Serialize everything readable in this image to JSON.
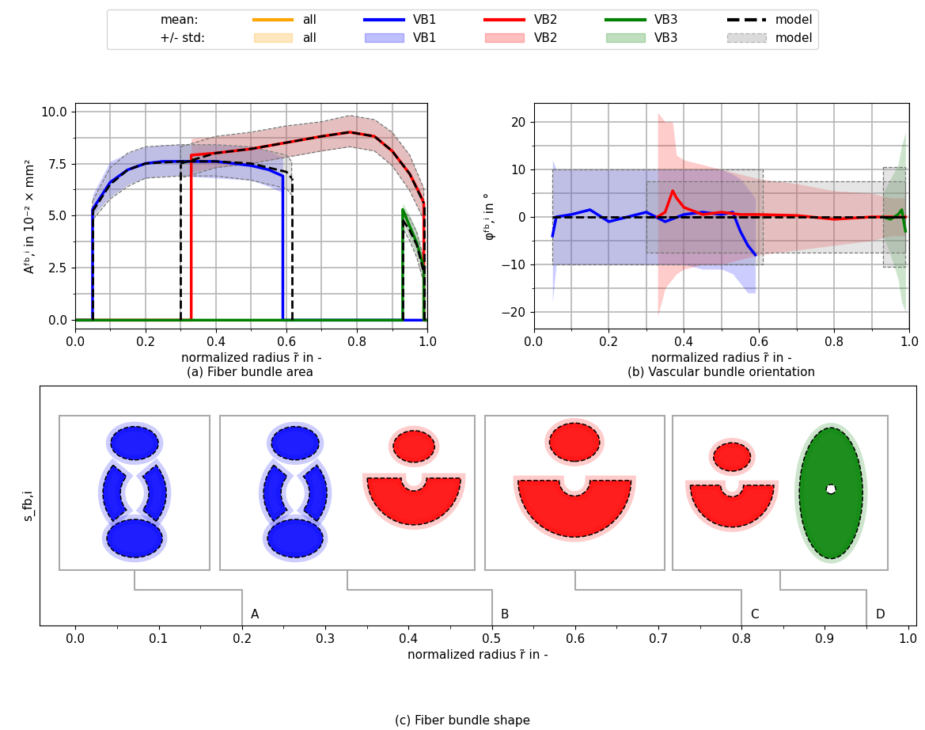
{
  "legend": {
    "loc": "upper center",
    "row_labels": [
      "mean:",
      "+/- std:"
    ],
    "entries": [
      {
        "name": "all",
        "color": "#ffa500"
      },
      {
        "name": "VB1",
        "color": "#0000ff"
      },
      {
        "name": "VB2",
        "color": "#ff0000"
      },
      {
        "name": "VB3",
        "color": "#008000"
      },
      {
        "name": "model",
        "color": "#000000",
        "line_style": "dashed"
      }
    ]
  },
  "chart_data": [
    {
      "type": "line",
      "title": "(a) Fiber bundle area",
      "xlabel": "normalized radius r̃ in -",
      "ylabel": "Aᶠᵇ,ⁱ in 10⁻² × mm²",
      "xlim": [
        0.0,
        1.0
      ],
      "ylim": [
        -0.4,
        10.4
      ],
      "xticks": [
        0.0,
        0.2,
        0.4,
        0.6,
        0.8,
        1.0
      ],
      "x_minor_ticks": [
        0.1,
        0.3,
        0.5,
        0.7,
        0.9
      ],
      "yticks": [
        {
          "value": 0,
          "label": "0.0"
        },
        2.5,
        5.0,
        7.5,
        10.0
      ],
      "y_minor_ticks": [
        1.25,
        3.75,
        6.25,
        8.75
      ],
      "grid": true,
      "series": [
        {
          "name": "VB1",
          "color": "#0000ff",
          "x": [
            0.0,
            0.05,
            0.05,
            0.1,
            0.15,
            0.2,
            0.25,
            0.3,
            0.35,
            0.4,
            0.45,
            0.5,
            0.55,
            0.59,
            0.59,
            1.0
          ],
          "values": [
            0,
            0,
            5.3,
            6.6,
            7.2,
            7.5,
            7.6,
            7.6,
            7.6,
            7.6,
            7.5,
            7.4,
            7.2,
            6.9,
            0,
            0
          ],
          "std": {
            "x": [
              0.05,
              0.1,
              0.15,
              0.2,
              0.25,
              0.3,
              0.4,
              0.5,
              0.55,
              0.59
            ],
            "lower": [
              5.0,
              5.9,
              6.5,
              6.8,
              6.9,
              6.9,
              6.8,
              6.7,
              6.4,
              6.1
            ],
            "upper": [
              6.0,
              7.6,
              8.0,
              8.3,
              8.4,
              8.4,
              8.4,
              8.3,
              8.1,
              7.8
            ]
          }
        },
        {
          "name": "VB2",
          "color": "#ff0000",
          "x": [
            0.0,
            0.33,
            0.33,
            0.4,
            0.5,
            0.6,
            0.7,
            0.78,
            0.85,
            0.9,
            0.95,
            0.98,
            0.99,
            0.99,
            1.0
          ],
          "values": [
            0,
            0,
            7.9,
            8.0,
            8.2,
            8.5,
            8.8,
            9.0,
            8.8,
            8.1,
            7.0,
            6.0,
            5.6,
            0,
            0
          ],
          "std": {
            "x": [
              0.33,
              0.4,
              0.5,
              0.6,
              0.7,
              0.78,
              0.85,
              0.9,
              0.95,
              0.99
            ],
            "lower": [
              7.1,
              7.3,
              7.5,
              7.8,
              8.1,
              8.3,
              8.1,
              7.4,
              6.2,
              4.8
            ],
            "upper": [
              8.7,
              8.8,
              9.0,
              9.3,
              9.5,
              9.8,
              9.6,
              9.0,
              7.9,
              6.3
            ]
          }
        },
        {
          "name": "VB3",
          "color": "#008000",
          "x": [
            0.0,
            0.93,
            0.93,
            0.95,
            0.97,
            0.99,
            0.99,
            1.0
          ],
          "values": [
            0,
            0,
            5.3,
            4.5,
            3.7,
            2.5,
            0,
            0
          ],
          "std": {
            "x": [
              0.93,
              0.95,
              0.97,
              0.99
            ],
            "lower": [
              4.9,
              3.9,
              3.1,
              2.0
            ],
            "upper": [
              5.6,
              5.0,
              4.3,
              3.0
            ]
          }
        },
        {
          "name": "model",
          "color": "#000000",
          "line_style": "dashed",
          "segments": [
            {
              "x": [
                0.05,
                0.1,
                0.15,
                0.2,
                0.3,
                0.4,
                0.5,
                0.6,
                0.615
              ],
              "values": [
                5.2,
                6.5,
                7.2,
                7.5,
                7.6,
                7.6,
                7.5,
                7.1,
                6.8
              ],
              "lower": [
                4.8,
                5.8,
                6.4,
                6.8,
                6.9,
                6.9,
                6.7,
                6.3,
                6.0
              ],
              "upper": [
                5.7,
                7.3,
                8.0,
                8.3,
                8.4,
                8.4,
                8.3,
                7.9,
                7.6
              ]
            },
            {
              "x": [
                0.3,
                0.4,
                0.5,
                0.6,
                0.7,
                0.78,
                0.85,
                0.9,
                0.95,
                0.99
              ],
              "values": [
                7.5,
                8.0,
                8.2,
                8.5,
                8.8,
                9.0,
                8.8,
                8.1,
                7.0,
                5.6
              ],
              "lower": [
                6.8,
                7.3,
                7.5,
                7.8,
                8.1,
                8.3,
                8.1,
                7.4,
                6.2,
                4.8
              ],
              "upper": [
                8.3,
                8.8,
                9.0,
                9.3,
                9.5,
                9.8,
                9.6,
                9.0,
                7.9,
                6.3
              ]
            },
            {
              "x": [
                0.93,
                0.95,
                0.97,
                0.99
              ],
              "values": [
                4.8,
                4.3,
                3.6,
                2.3
              ],
              "lower": [
                4.4,
                3.8,
                3.0,
                1.8
              ],
              "upper": [
                5.3,
                4.9,
                4.2,
                2.9
              ]
            }
          ]
        }
      ]
    },
    {
      "type": "line",
      "title": "(b) Vascular bundle orientation",
      "xlabel": "normalized radius r̃ in -",
      "ylabel": "φᶠᵇ,ⁱ in °",
      "xlim": [
        0.0,
        1.0
      ],
      "ylim": [
        -23.5,
        24.0
      ],
      "xticks": [
        0.0,
        0.2,
        0.4,
        0.6,
        0.8,
        1.0
      ],
      "x_minor_ticks": [
        0.1,
        0.3,
        0.5,
        0.7,
        0.9
      ],
      "yticks": [
        {
          "value": -20,
          "label": "−20"
        },
        {
          "value": -10,
          "label": "−10"
        },
        0,
        10,
        20
      ],
      "y_minor_ticks": [
        -15,
        -5,
        5,
        15
      ],
      "grid": true,
      "series": [
        {
          "name": "VB1",
          "color": "#0000ff",
          "x": [
            0.05,
            0.06,
            0.1,
            0.15,
            0.2,
            0.25,
            0.3,
            0.35,
            0.4,
            0.45,
            0.5,
            0.53,
            0.55,
            0.57,
            0.59
          ],
          "values": [
            -4,
            0,
            0.5,
            1.5,
            -1,
            0,
            1,
            -1,
            0.5,
            1,
            0.5,
            1,
            -3,
            -6,
            -8
          ],
          "std": {
            "x": [
              0.05,
              0.06,
              0.1,
              0.15,
              0.2,
              0.25,
              0.3,
              0.35,
              0.4,
              0.45,
              0.5,
              0.53,
              0.55,
              0.57,
              0.59
            ],
            "lower": [
              -18,
              -10,
              -10,
              -10,
              -10,
              -10,
              -10,
              -10,
              -10,
              -11,
              -11,
              -12,
              -14,
              -16,
              -16
            ],
            "upper": [
              12,
              10,
              10,
              10,
              10,
              10,
              10,
              10,
              10,
              10,
              10,
              9,
              8,
              6,
              4
            ]
          }
        },
        {
          "name": "VB2",
          "color": "#ff0000",
          "x": [
            0.33,
            0.35,
            0.37,
            0.38,
            0.4,
            0.45,
            0.5,
            0.55,
            0.6,
            0.7,
            0.8,
            0.9,
            0.95,
            0.99
          ],
          "values": [
            0,
            1,
            5.5,
            4,
            2,
            0.5,
            1,
            0.5,
            0.5,
            0.3,
            -0.5,
            0,
            0,
            0
          ],
          "std": {
            "x": [
              0.33,
              0.35,
              0.37,
              0.38,
              0.4,
              0.45,
              0.5,
              0.55,
              0.6,
              0.7,
              0.8,
              0.9,
              0.95,
              0.99
            ],
            "lower": [
              -21,
              -15,
              -13,
              -12,
              -11,
              -10,
              -10,
              -9,
              -8,
              -7,
              -6,
              -5,
              -4,
              -4
            ],
            "upper": [
              22,
              20,
              20,
              13,
              12,
              11,
              10,
              9,
              8,
              7,
              5.5,
              5,
              4,
              4
            ]
          }
        },
        {
          "name": "VB3",
          "color": "#008000",
          "x": [
            0.93,
            0.95,
            0.97,
            0.98,
            0.99
          ],
          "values": [
            0,
            -0.5,
            0.5,
            1.5,
            -3
          ],
          "std": {
            "x": [
              0.93,
              0.95,
              0.97,
              0.98,
              0.99
            ],
            "lower": [
              -4,
              -8,
              -13,
              -18,
              -20
            ],
            "upper": [
              5,
              8,
              11,
              15,
              18
            ]
          }
        },
        {
          "name": "model",
          "color": "#000000",
          "line_style": "dashed",
          "segments": [
            {
              "x": [
                0.05,
                0.61
              ],
              "values": [
                0,
                0
              ],
              "lower": [
                -10,
                -10
              ],
              "upper": [
                10,
                10
              ]
            },
            {
              "x": [
                0.3,
                0.99
              ],
              "values": [
                0,
                0
              ],
              "lower": [
                -7.5,
                -7.5
              ],
              "upper": [
                7.5,
                7.5
              ]
            },
            {
              "x": [
                0.93,
                0.99
              ],
              "values": [
                0,
                0
              ],
              "lower": [
                -10.5,
                -10.5
              ],
              "upper": [
                10.5,
                10.5
              ]
            }
          ]
        }
      ]
    },
    {
      "type": "diagram",
      "title": "(c) Fiber bundle shape",
      "xlabel": "normalized radius r̃ in -",
      "ylabel": "s_fb,i",
      "xlim": [
        -0.043,
        1.01
      ],
      "xticks": [
        0.0,
        0.1,
        0.2,
        0.3,
        0.4,
        0.5,
        0.6,
        0.7,
        0.8,
        0.9,
        1.0
      ],
      "x_minor_ticks": [
        0.05,
        0.15,
        0.25,
        0.35,
        0.45,
        0.55,
        0.65,
        0.75,
        0.85,
        0.95
      ],
      "markers": [
        {
          "label": "A",
          "x": 0.2,
          "bundles": [
            "VB1"
          ]
        },
        {
          "label": "B",
          "x": 0.5,
          "bundles": [
            "VB1",
            "VB2"
          ]
        },
        {
          "label": "C",
          "x": 0.8,
          "bundles": [
            "VB2"
          ]
        },
        {
          "label": "D",
          "x": 0.95,
          "bundles": [
            "VB2",
            "VB3"
          ]
        }
      ]
    }
  ]
}
